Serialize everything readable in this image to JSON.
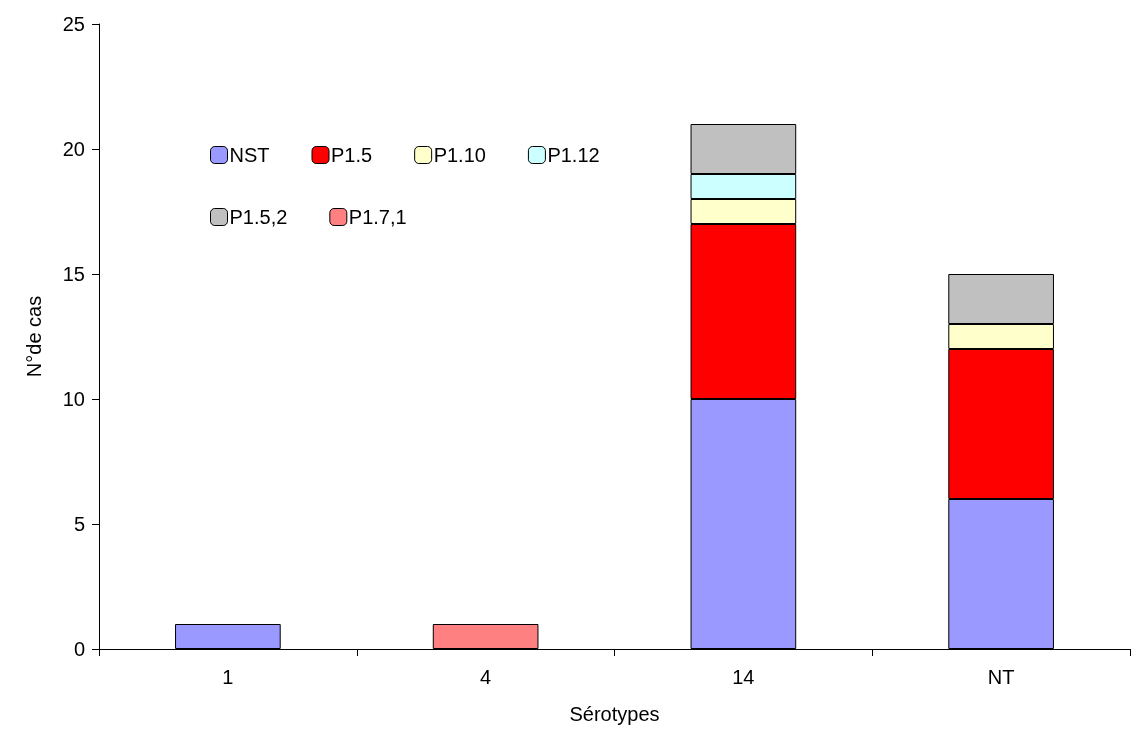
{
  "chart_data": {
    "type": "bar",
    "stacked": true,
    "xlabel": "Sérotypes",
    "ylabel": "N°de cas",
    "categories": [
      "1",
      "4",
      "14",
      "NT"
    ],
    "series": [
      {
        "name": "NST",
        "color": "#9999ff",
        "values": [
          1,
          null,
          10,
          6
        ]
      },
      {
        "name": "P1.5",
        "color": "#ff0000",
        "values": [
          null,
          null,
          7,
          6
        ]
      },
      {
        "name": "P1.10",
        "color": "#ffffcc",
        "values": [
          null,
          null,
          1,
          1
        ]
      },
      {
        "name": "P1.12",
        "color": "#ccffff",
        "values": [
          null,
          null,
          1,
          null
        ]
      },
      {
        "name": "P1.5,2",
        "color": "#c0c0c0",
        "values": [
          null,
          null,
          2,
          2
        ]
      },
      {
        "name": "P1.7,1",
        "color": "#ff8080",
        "values": [
          null,
          1,
          null,
          null
        ]
      }
    ],
    "ylim": [
      0,
      25
    ],
    "yticks": [
      0,
      5,
      10,
      15,
      20,
      25
    ],
    "grid": false,
    "legend": "top left"
  }
}
